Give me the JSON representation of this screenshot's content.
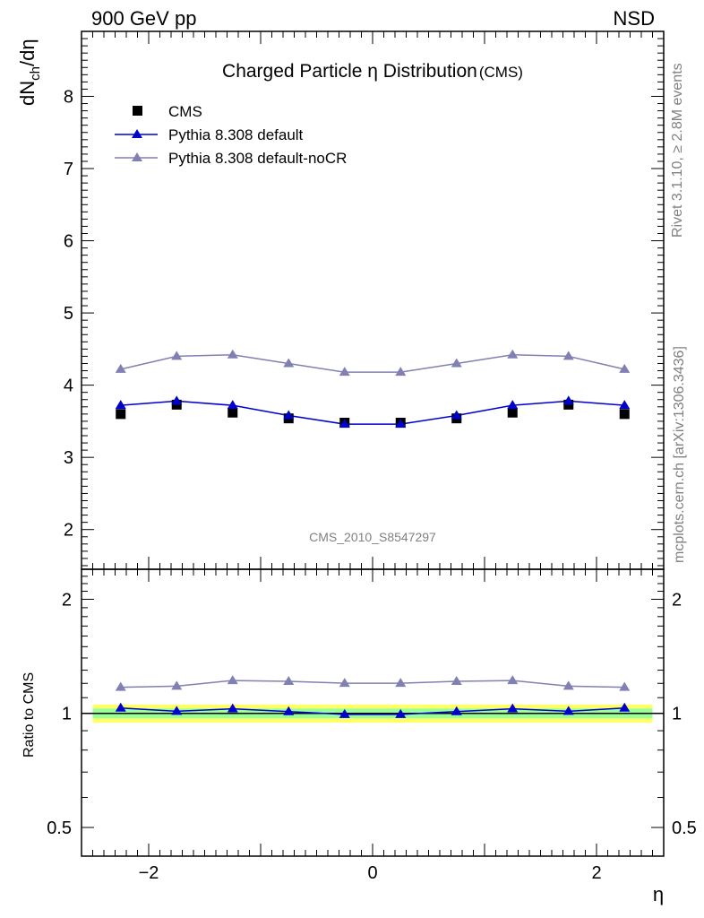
{
  "header": {
    "left": "900 GeV pp",
    "right": "NSD"
  },
  "side_labels": {
    "rivet": "Rivet 3.1.10, ≥ 2.8M events",
    "mcplots": "mcplots.cern.ch [arXiv:1306.3436]"
  },
  "watermark": "CMS_2010_S8547297",
  "chart_data": [
    {
      "type": "scatter",
      "panel": "main",
      "title": "Charged Particle η Distribution",
      "title_suffix": "(CMS)",
      "ylabel_main": "dN",
      "ylabel_sub": "ch",
      "ylabel_tail": "/dη",
      "xlim": [
        -2.6,
        2.6
      ],
      "ylim": [
        1.45,
        8.9
      ],
      "yticks": [
        2,
        3,
        4,
        5,
        6,
        7,
        8
      ],
      "x": [
        -2.25,
        -1.75,
        -1.25,
        -0.75,
        -0.25,
        0.25,
        0.75,
        1.25,
        1.75,
        2.25
      ],
      "legend_position": "top-left",
      "series": [
        {
          "name": "CMS",
          "marker": "square",
          "color": "#000000",
          "values": [
            3.6,
            3.73,
            3.62,
            3.54,
            3.48,
            3.48,
            3.54,
            3.62,
            3.73,
            3.6
          ]
        },
        {
          "name": "Pythia 8.308 default",
          "marker": "triangle",
          "color": "#0000cc",
          "values": [
            3.72,
            3.78,
            3.72,
            3.58,
            3.46,
            3.46,
            3.58,
            3.72,
            3.78,
            3.72
          ]
        },
        {
          "name": "Pythia 8.308 default-noCR",
          "marker": "triangle",
          "color": "#8080b3",
          "values": [
            4.22,
            4.4,
            4.42,
            4.3,
            4.18,
            4.18,
            4.3,
            4.42,
            4.4,
            4.22
          ]
        }
      ]
    },
    {
      "type": "line",
      "panel": "ratio",
      "ylabel": "Ratio to CMS",
      "xlabel": "η",
      "xlim": [
        -2.6,
        2.6
      ],
      "ylim": [
        0.42,
        2.4
      ],
      "log_y": true,
      "yticks": [
        0.5,
        1,
        2
      ],
      "xticks": [
        -2,
        0,
        2
      ],
      "x": [
        -2.25,
        -1.75,
        -1.25,
        -0.75,
        -0.25,
        0.25,
        0.75,
        1.25,
        1.75,
        2.25
      ],
      "band_yellow": {
        "color": "#ffff66",
        "halfwidth": [
          0.055,
          0.055,
          0.055,
          0.055,
          0.055,
          0.055,
          0.055,
          0.055,
          0.055,
          0.055
        ]
      },
      "band_green": {
        "color": "#99ff99",
        "halfwidth": [
          0.03,
          0.03,
          0.03,
          0.03,
          0.03,
          0.03,
          0.03,
          0.03,
          0.03,
          0.03
        ]
      },
      "series": [
        {
          "name": "Pythia 8.308 default",
          "color": "#0000cc",
          "values": [
            1.033,
            1.013,
            1.028,
            1.011,
            0.994,
            0.994,
            1.011,
            1.028,
            1.013,
            1.033
          ]
        },
        {
          "name": "Pythia 8.308 default-noCR",
          "color": "#8080b3",
          "values": [
            1.172,
            1.18,
            1.221,
            1.215,
            1.201,
            1.201,
            1.215,
            1.221,
            1.18,
            1.172
          ]
        }
      ]
    }
  ]
}
